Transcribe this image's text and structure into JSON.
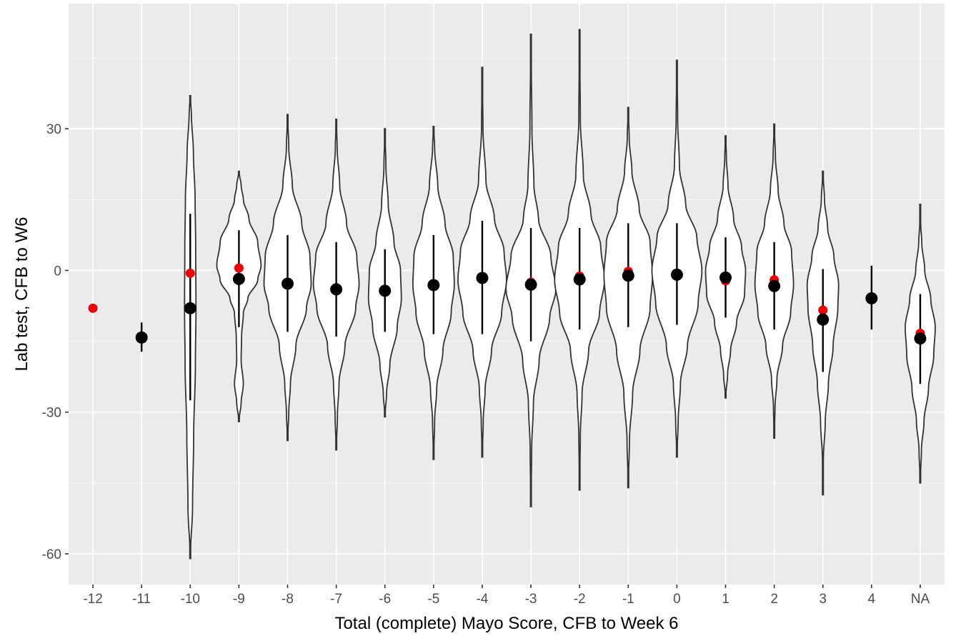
{
  "chart_data": {
    "type": "violin",
    "xlabel": "Total (complete) Mayo Score, CFB to Week 6",
    "ylabel": "Lab test, CFB to W6",
    "categories": [
      "-12",
      "-11",
      "-10",
      "-9",
      "-8",
      "-7",
      "-6",
      "-5",
      "-4",
      "-3",
      "-2",
      "-1",
      "0",
      "1",
      "2",
      "3",
      "4",
      "NA"
    ],
    "y_ticks": [
      30,
      0,
      -30,
      -60
    ],
    "y_tick_labels": [
      "30",
      "0",
      "-30",
      "-60"
    ],
    "ylim": [
      -66.5,
      56.5
    ],
    "grid": true,
    "colors": {
      "panel": "#ebebeb",
      "grid_major": "#ffffff",
      "violin_fill": "#ffffff",
      "violin_stroke": "#333333",
      "mean_point": "#000000",
      "median_point": "#ee0000"
    },
    "groups": [
      {
        "x": "-12",
        "violin": null,
        "mean": null,
        "median": -8,
        "error_low": null,
        "error_high": null
      },
      {
        "x": "-11",
        "violin": null,
        "mean": -14.2,
        "median": null,
        "error_low": -17.2,
        "error_high": -11
      },
      {
        "x": "-10",
        "violin": {
          "ymin": -61,
          "ymax": 37,
          "max_half_width": 8,
          "profile": [
            [
              -61,
              0
            ],
            [
              -50,
              0.4
            ],
            [
              -35,
              0.6
            ],
            [
              -20,
              0.9
            ],
            [
              -8,
              1.0
            ],
            [
              5,
              0.95
            ],
            [
              15,
              0.85
            ],
            [
              25,
              0.55
            ],
            [
              33,
              0.2
            ],
            [
              37,
              0
            ]
          ]
        },
        "mean": -8,
        "median": -0.6,
        "error_low": -27.5,
        "error_high": 12
      },
      {
        "x": "-9",
        "violin": {
          "ymin": -32,
          "ymax": 21,
          "max_half_width": 31,
          "profile": [
            [
              -32,
              0
            ],
            [
              -28,
              0.1
            ],
            [
              -24,
              0.2
            ],
            [
              -19,
              0.1
            ],
            [
              -14,
              0.12
            ],
            [
              -9,
              0.2
            ],
            [
              -6,
              0.4
            ],
            [
              -2,
              0.85
            ],
            [
              1,
              1.0
            ],
            [
              6,
              0.85
            ],
            [
              11,
              0.45
            ],
            [
              15,
              0.2
            ],
            [
              18,
              0.1
            ],
            [
              21,
              0
            ]
          ]
        },
        "mean": -1.8,
        "median": 0.5,
        "error_low": -12,
        "error_high": 8.5
      },
      {
        "x": "-8",
        "violin": {
          "ymin": -36,
          "ymax": 33,
          "max_half_width": 33,
          "profile": [
            [
              -36,
              0
            ],
            [
              -30,
              0.05
            ],
            [
              -24,
              0.12
            ],
            [
              -16,
              0.35
            ],
            [
              -8,
              0.8
            ],
            [
              -3,
              1.0
            ],
            [
              3,
              0.95
            ],
            [
              10,
              0.6
            ],
            [
              18,
              0.2
            ],
            [
              26,
              0.05
            ],
            [
              33,
              0
            ]
          ]
        },
        "mean": -2.8,
        "median": -2.8,
        "error_low": -13,
        "error_high": 7.5
      },
      {
        "x": "-7",
        "violin": {
          "ymin": -38,
          "ymax": 32,
          "max_half_width": 32,
          "profile": [
            [
              -38,
              0
            ],
            [
              -31,
              0.05
            ],
            [
              -24,
              0.12
            ],
            [
              -16,
              0.38
            ],
            [
              -8,
              0.85
            ],
            [
              -3,
              1.0
            ],
            [
              3,
              0.9
            ],
            [
              10,
              0.45
            ],
            [
              18,
              0.15
            ],
            [
              26,
              0.04
            ],
            [
              32,
              0
            ]
          ]
        },
        "mean": -4,
        "median": -4,
        "error_low": -14,
        "error_high": 6
      },
      {
        "x": "-6",
        "violin": {
          "ymin": -31,
          "ymax": 30,
          "max_half_width": 23,
          "profile": [
            [
              -31,
              0
            ],
            [
              -26,
              0.1
            ],
            [
              -20,
              0.3
            ],
            [
              -12,
              0.75
            ],
            [
              -6,
              1.0
            ],
            [
              0,
              0.95
            ],
            [
              6,
              0.55
            ],
            [
              14,
              0.2
            ],
            [
              22,
              0.06
            ],
            [
              30,
              0
            ]
          ]
        },
        "mean": -4.3,
        "median": -4.5,
        "error_low": -13,
        "error_high": 4.5
      },
      {
        "x": "-5",
        "violin": {
          "ymin": -40,
          "ymax": 30.5,
          "max_half_width": 29,
          "profile": [
            [
              -40,
              0
            ],
            [
              -32,
              0.05
            ],
            [
              -25,
              0.15
            ],
            [
              -17,
              0.45
            ],
            [
              -9,
              0.85
            ],
            [
              -3,
              1.0
            ],
            [
              3,
              0.95
            ],
            [
              10,
              0.55
            ],
            [
              18,
              0.2
            ],
            [
              26,
              0.05
            ],
            [
              30.5,
              0
            ]
          ]
        },
        "mean": -3.1,
        "median": -3.1,
        "error_low": -13.5,
        "error_high": 7.5
      },
      {
        "x": "-4",
        "violin": {
          "ymin": -39.5,
          "ymax": 43,
          "max_half_width": 34,
          "profile": [
            [
              -39.5,
              0
            ],
            [
              -32,
              0.04
            ],
            [
              -25,
              0.12
            ],
            [
              -17,
              0.38
            ],
            [
              -9,
              0.8
            ],
            [
              -2,
              1.0
            ],
            [
              4,
              0.9
            ],
            [
              11,
              0.5
            ],
            [
              19,
              0.15
            ],
            [
              30,
              0.03
            ],
            [
              43,
              0
            ]
          ]
        },
        "mean": -1.6,
        "median": -1.6,
        "error_low": -13.5,
        "error_high": 10.5
      },
      {
        "x": "-3",
        "violin": {
          "ymin": -50,
          "ymax": 50,
          "max_half_width": 35,
          "profile": [
            [
              -50,
              0
            ],
            [
              -38,
              0.03
            ],
            [
              -28,
              0.1
            ],
            [
              -19,
              0.33
            ],
            [
              -10,
              0.75
            ],
            [
              -4,
              1.0
            ],
            [
              3,
              0.8
            ],
            [
              11,
              0.3
            ],
            [
              18,
              0.12
            ],
            [
              30,
              0.04
            ],
            [
              50,
              0
            ]
          ]
        },
        "mean": -3,
        "median": -2.5,
        "error_low": -15,
        "error_high": 9
      },
      {
        "x": "-2",
        "violin": {
          "ymin": -46.5,
          "ymax": 51,
          "max_half_width": 35,
          "profile": [
            [
              -46.5,
              0
            ],
            [
              -35,
              0.03
            ],
            [
              -26,
              0.1
            ],
            [
              -17,
              0.36
            ],
            [
              -9,
              0.8
            ],
            [
              -2,
              1.0
            ],
            [
              5,
              0.85
            ],
            [
              12,
              0.45
            ],
            [
              20,
              0.15
            ],
            [
              32,
              0.03
            ],
            [
              51,
              0
            ]
          ]
        },
        "mean": -1.9,
        "median": -1.2,
        "error_low": -12.5,
        "error_high": 9
      },
      {
        "x": "-1",
        "violin": {
          "ymin": -46,
          "ymax": 34.5,
          "max_half_width": 34,
          "profile": [
            [
              -46,
              0
            ],
            [
              -36,
              0.05
            ],
            [
              -26,
              0.18
            ],
            [
              -17,
              0.48
            ],
            [
              -8,
              0.9
            ],
            [
              -1,
              1.0
            ],
            [
              6,
              0.9
            ],
            [
              13,
              0.45
            ],
            [
              21,
              0.15
            ],
            [
              28,
              0.04
            ],
            [
              34.5,
              0
            ]
          ]
        },
        "mean": -1.1,
        "median": -0.2,
        "error_low": -12,
        "error_high": 10
      },
      {
        "x": "0",
        "violin": {
          "ymin": -39.5,
          "ymax": 44.5,
          "max_half_width": 35,
          "profile": [
            [
              -39.5,
              0
            ],
            [
              -32,
              0.05
            ],
            [
              -24,
              0.14
            ],
            [
              -16,
              0.42
            ],
            [
              -7,
              0.85
            ],
            [
              0,
              1.0
            ],
            [
              7,
              0.8
            ],
            [
              14,
              0.35
            ],
            [
              22,
              0.1
            ],
            [
              32,
              0.03
            ],
            [
              44.5,
              0
            ]
          ]
        },
        "mean": -0.9,
        "median": -0.9,
        "error_low": -11.5,
        "error_high": 10
      },
      {
        "x": "1",
        "violin": {
          "ymin": -27,
          "ymax": 28.5,
          "max_half_width": 28,
          "profile": [
            [
              -27,
              0
            ],
            [
              -22,
              0.1
            ],
            [
              -17,
              0.25
            ],
            [
              -11,
              0.55
            ],
            [
              -5,
              0.95
            ],
            [
              0,
              1.0
            ],
            [
              5,
              0.8
            ],
            [
              11,
              0.4
            ],
            [
              18,
              0.12
            ],
            [
              24,
              0.04
            ],
            [
              28.5,
              0
            ]
          ]
        },
        "mean": -1.5,
        "median": -2.2,
        "error_low": -10,
        "error_high": 7
      },
      {
        "x": "2",
        "violin": {
          "ymin": -35.5,
          "ymax": 31,
          "max_half_width": 27,
          "profile": [
            [
              -35.5,
              0
            ],
            [
              -29,
              0.04
            ],
            [
              -23,
              0.14
            ],
            [
              -16,
              0.43
            ],
            [
              -9,
              0.85
            ],
            [
              -3,
              1.0
            ],
            [
              4,
              0.9
            ],
            [
              10,
              0.5
            ],
            [
              17,
              0.2
            ],
            [
              24,
              0.06
            ],
            [
              31,
              0
            ]
          ]
        },
        "mean": -3.3,
        "median": -2,
        "error_low": -12.5,
        "error_high": 6
      },
      {
        "x": "3",
        "violin": {
          "ymin": -47.5,
          "ymax": 21,
          "max_half_width": 22,
          "profile": [
            [
              -47.5,
              0
            ],
            [
              -40,
              0.03
            ],
            [
              -32,
              0.15
            ],
            [
              -24,
              0.35
            ],
            [
              -16,
              0.65
            ],
            [
              -8,
              0.95
            ],
            [
              -3,
              1.0
            ],
            [
              3,
              0.7
            ],
            [
              9,
              0.3
            ],
            [
              15,
              0.1
            ],
            [
              21,
              0
            ]
          ]
        },
        "mean": -10.4,
        "median": -8.4,
        "error_low": -21.5,
        "error_high": 0.3
      },
      {
        "x": "4",
        "violin": null,
        "mean": -5.9,
        "median": null,
        "error_low": -12.5,
        "error_high": 1
      },
      {
        "x": "NA",
        "violin": {
          "ymin": -45,
          "ymax": 14,
          "max_half_width": 21,
          "profile": [
            [
              -45,
              0
            ],
            [
              -38,
              0.08
            ],
            [
              -32,
              0.25
            ],
            [
              -25,
              0.55
            ],
            [
              -18,
              0.9
            ],
            [
              -12,
              1.0
            ],
            [
              -6,
              0.7
            ],
            [
              0,
              0.3
            ],
            [
              6,
              0.1
            ],
            [
              10,
              0.03
            ],
            [
              14,
              0
            ]
          ]
        },
        "mean": -14.4,
        "median": -13.3,
        "error_low": -24,
        "error_high": -5
      }
    ]
  }
}
